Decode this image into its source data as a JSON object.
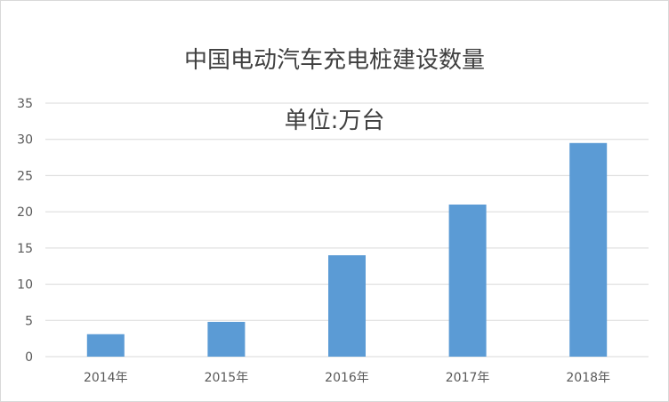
{
  "chart_data": {
    "type": "bar",
    "title": "中国电动汽车充电桩建设数量",
    "subtitle": "单位:万台",
    "categories": [
      "2014年",
      "2015年",
      "2016年",
      "2017年",
      "2018年"
    ],
    "series": [
      {
        "values": [
          3.1,
          4.8,
          14,
          21,
          29.5
        ]
      }
    ],
    "ylim": [
      0,
      35
    ],
    "yticks": [
      0,
      5,
      10,
      15,
      20,
      25,
      30,
      35
    ],
    "grid": true,
    "bar_color": "#5b9bd5",
    "grid_color": "#d9d9d9",
    "legend": "none"
  }
}
